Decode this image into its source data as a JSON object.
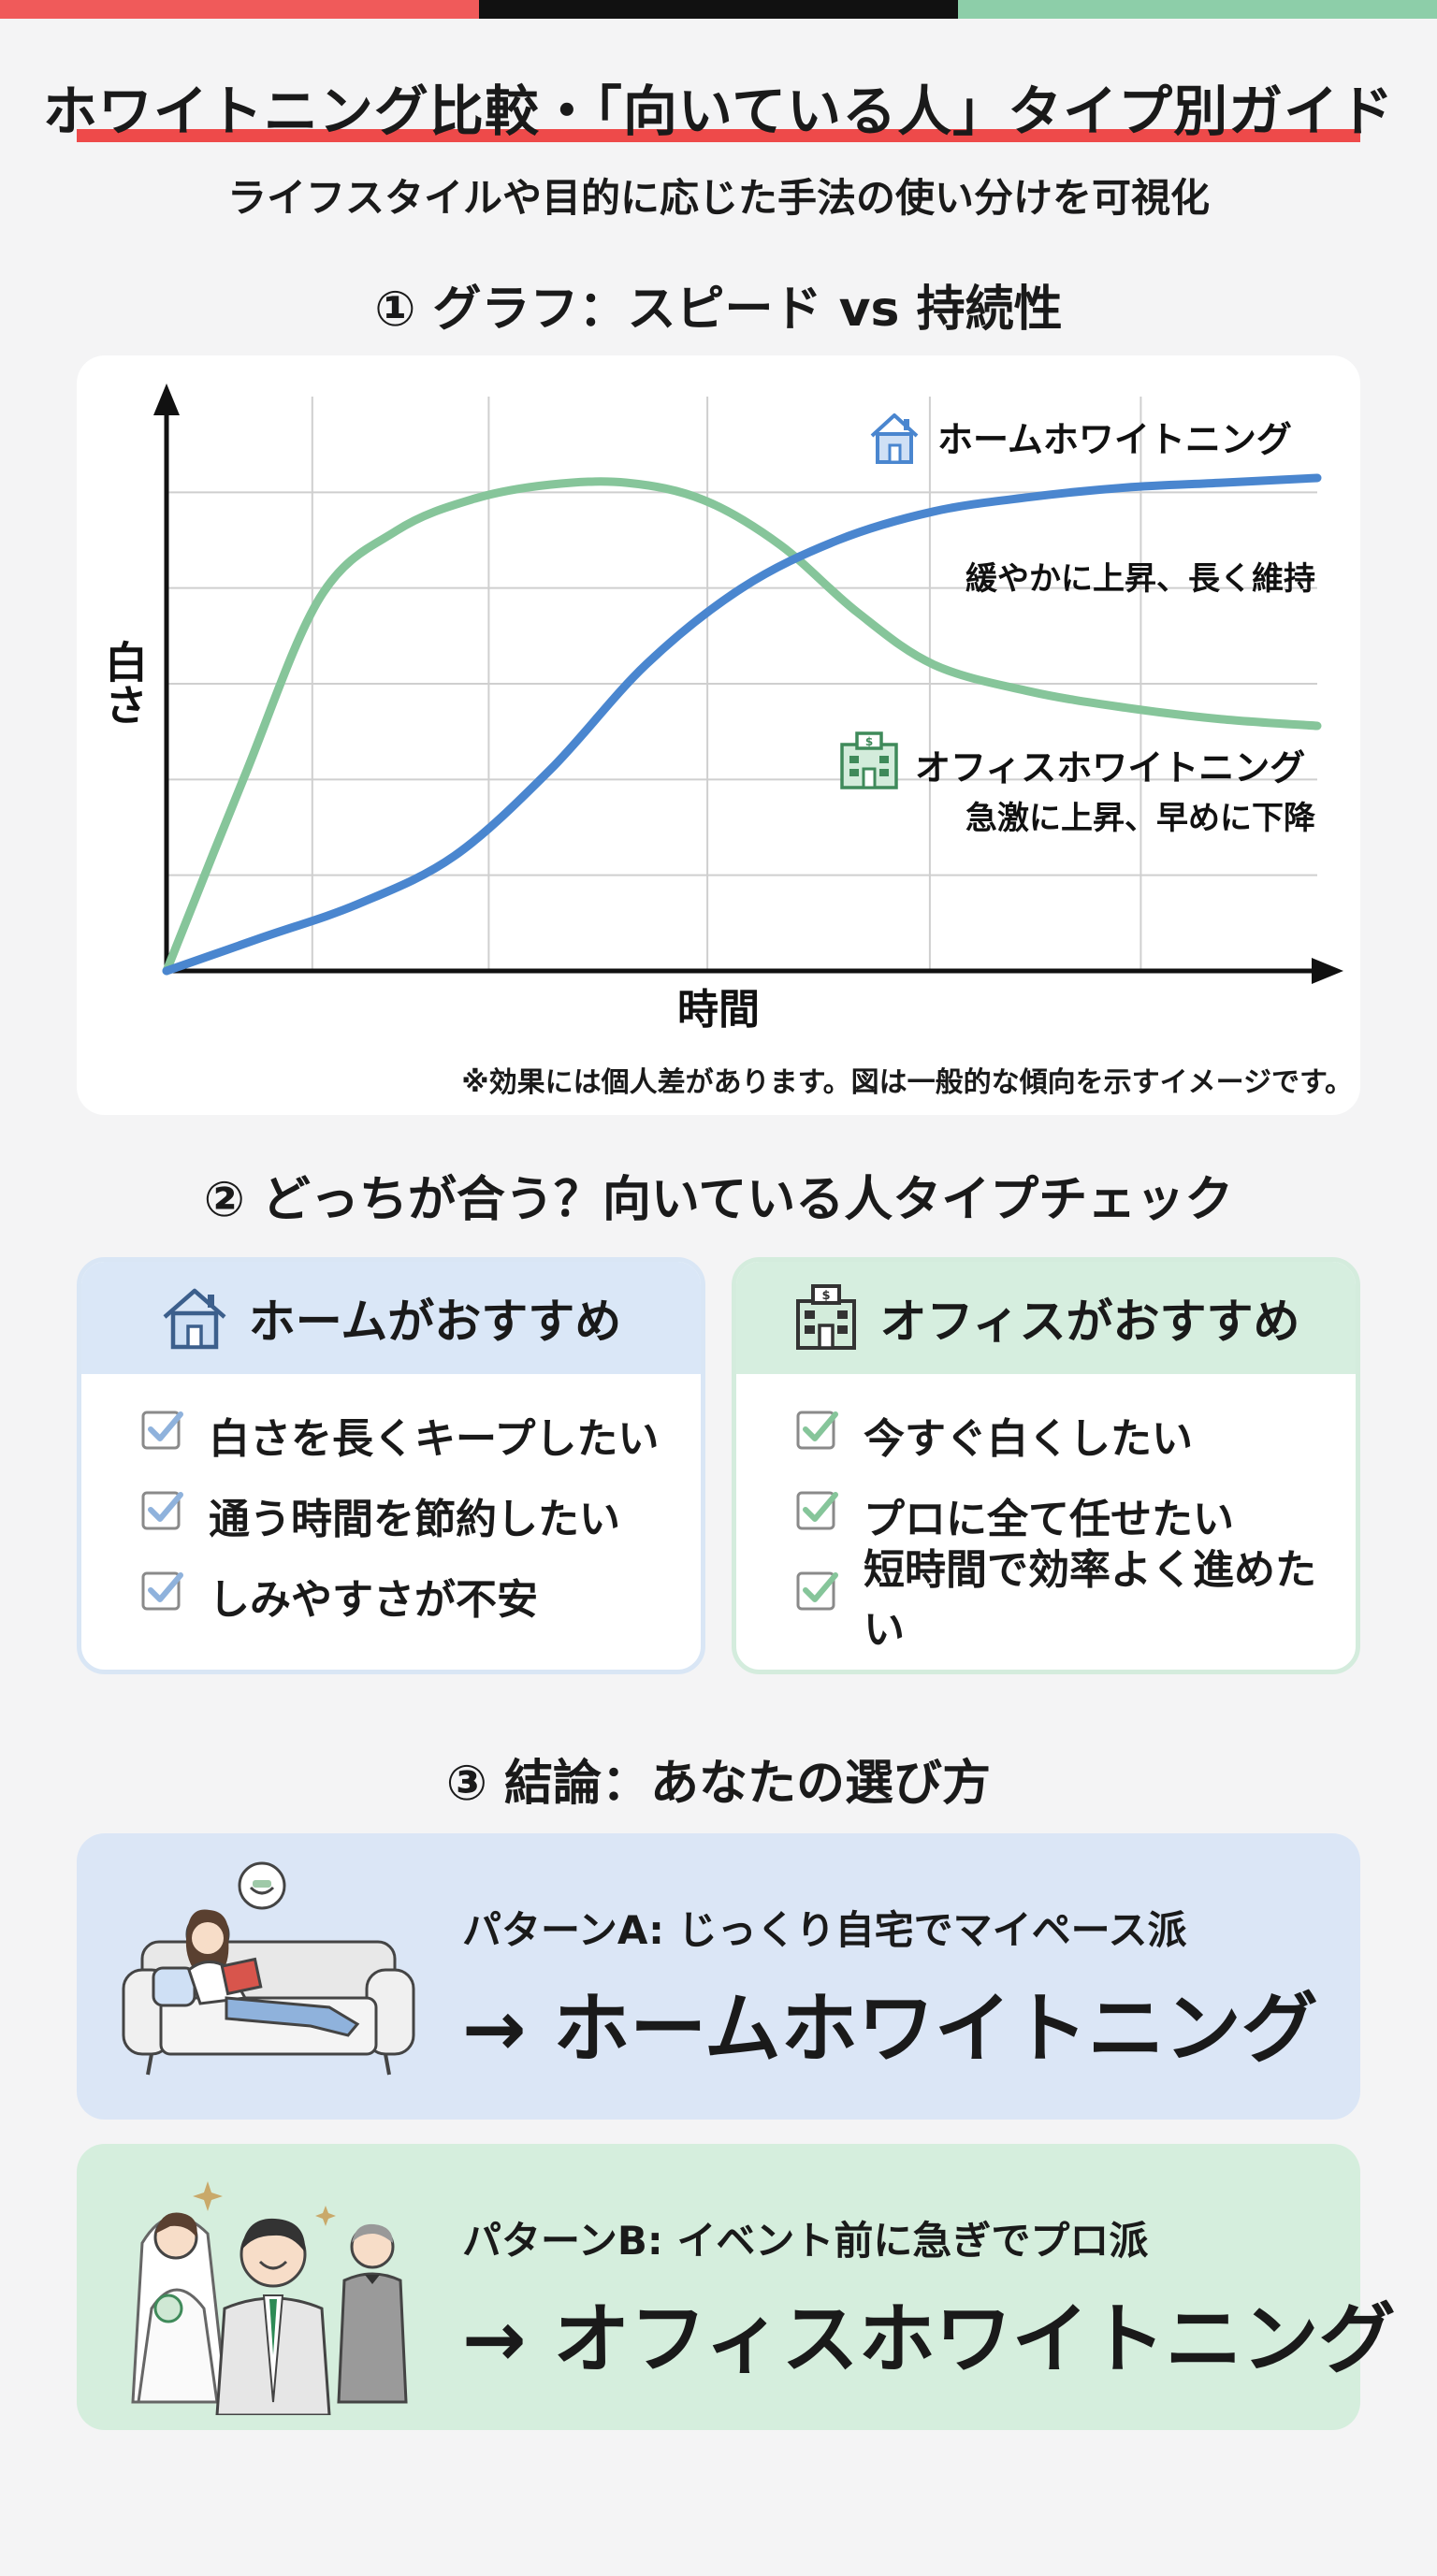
{
  "header": {
    "title": "ホワイトニング比較・「向いている人」タイプ別ガイド",
    "subtitle": "ライフスタイルや目的に応じた手法の使い分けを可視化",
    "bar_colors": [
      "#f05a5a",
      "#111111",
      "#8dcea9"
    ]
  },
  "sections": {
    "graph": "① グラフ：スピード vs 持続性",
    "check": "② どっちが合う？向いている人タイプチェック",
    "conclusion": "③ 結論：あなたの選び方"
  },
  "chart_data": {
    "type": "line",
    "title": "",
    "xlabel": "時間",
    "ylabel": "白さ",
    "series": [
      {
        "name": "ホームホワイトニング",
        "description": "緩やかに上昇、長く維持",
        "color": "#4a86cf",
        "icon": "house-icon",
        "x": [
          0,
          0.5,
          1,
          1.5,
          2,
          2.5,
          3,
          3.5,
          4,
          4.5,
          5,
          5.5,
          6
        ],
        "values": [
          0,
          0.35,
          0.7,
          1.2,
          2.1,
          3.2,
          4.0,
          4.5,
          4.8,
          4.95,
          5.05,
          5.1,
          5.15
        ]
      },
      {
        "name": "オフィスホワイトニング",
        "description": "急激に上昇、早めに下降",
        "color": "#86c59a",
        "icon": "clinic-icon",
        "x": [
          0,
          0.4,
          0.8,
          1.2,
          1.6,
          2,
          2.4,
          2.8,
          3.2,
          3.6,
          4,
          4.5,
          5,
          5.5,
          6
        ],
        "values": [
          0,
          2.0,
          3.9,
          4.6,
          4.93,
          5.08,
          5.1,
          4.92,
          4.45,
          3.75,
          3.2,
          2.92,
          2.75,
          2.63,
          2.56
        ]
      }
    ],
    "xlim": [
      0,
      6
    ],
    "ylim": [
      0,
      6
    ],
    "grid": true,
    "ticks": "none",
    "note": "※効果には個人差があります。図は一般的な傾向を示すイメージです。"
  },
  "home_card": {
    "title": "ホームがおすすめ",
    "items": [
      "白さを長くキープしたい",
      "通う時間を節約したい",
      "しみやすさが不安"
    ]
  },
  "office_card": {
    "title": "オフィスがおすすめ",
    "items": [
      "今すぐ白くしたい",
      "プロに全て任せたい",
      "短時間で効率よく進めたい"
    ]
  },
  "patterns": [
    {
      "sub": "パターンA: じっくり自宅でマイペース派",
      "result": "→ ホームホワイトニング",
      "color": "#dbe6f6"
    },
    {
      "sub": "パターンB: イベント前に急ぎでプロ派",
      "result": "→ オフィスホワイトニング",
      "color": "#d5eedd"
    }
  ]
}
